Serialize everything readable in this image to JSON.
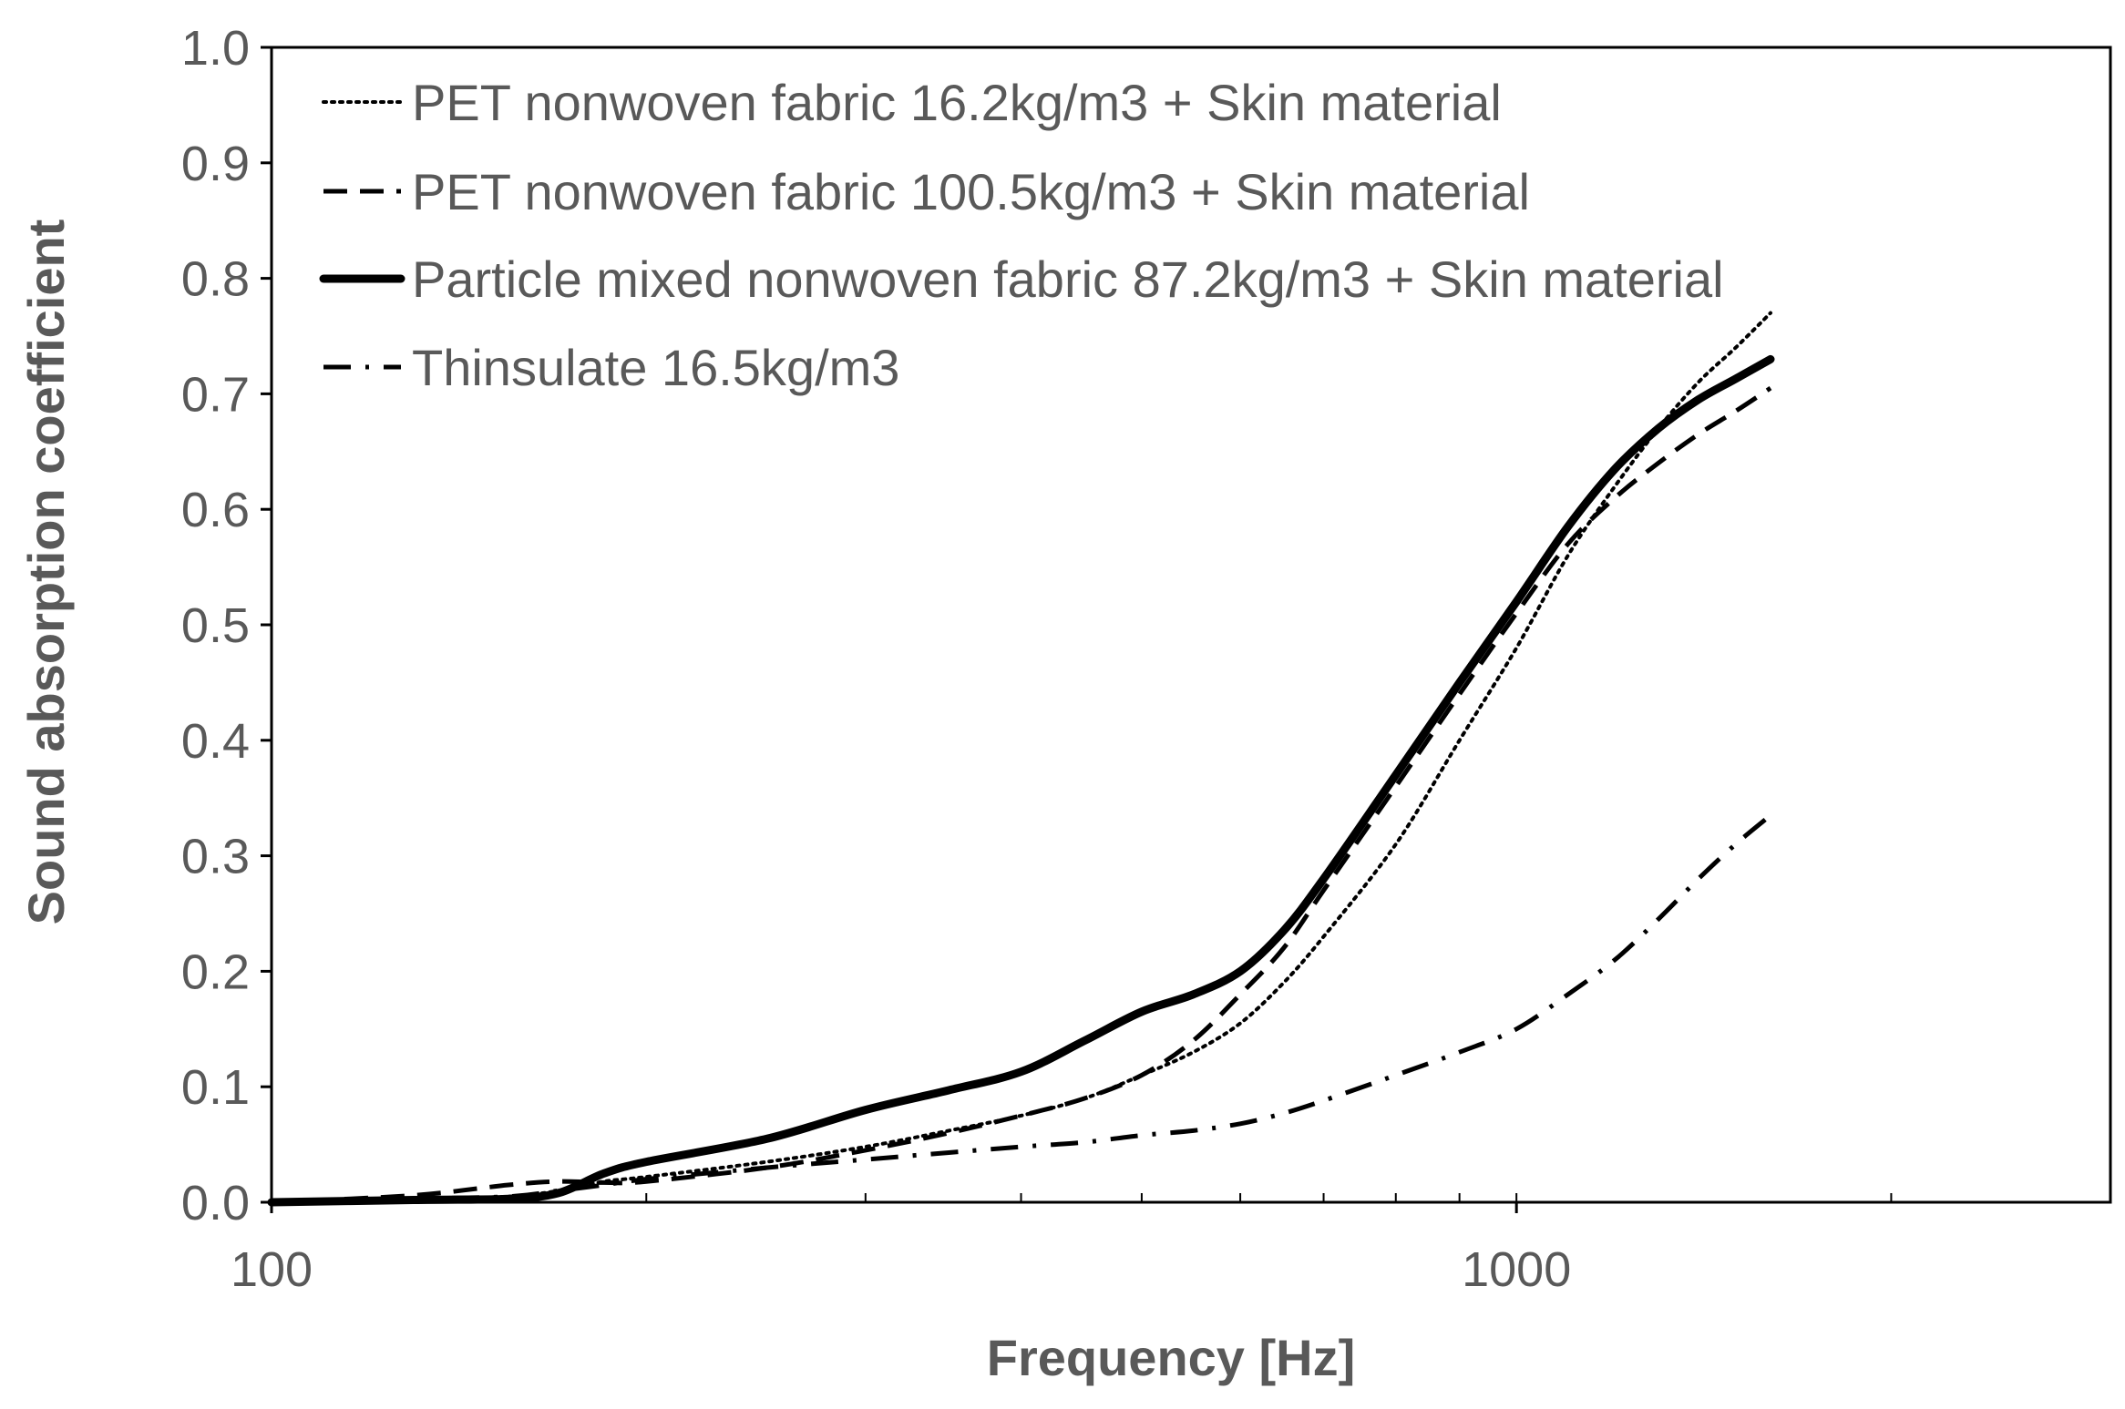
{
  "chart_data": {
    "type": "line",
    "title": "",
    "xlabel": "Frequency [Hz]",
    "ylabel": "Sound absorption coefficient",
    "xscale": "log",
    "xlim": [
      100,
      3000
    ],
    "ylim": [
      0,
      1.0
    ],
    "x_ticks": [
      "100",
      "1000"
    ],
    "y_ticks": [
      "0.0",
      "0.1",
      "0.2",
      "0.3",
      "0.4",
      "0.5",
      "0.6",
      "0.7",
      "0.8",
      "0.9",
      "1.0"
    ],
    "grid": false,
    "legend_position": "top-left",
    "series": [
      {
        "name": "PET nonwoven fabric 16.2kg/m3 + Skin material",
        "style": "dotted",
        "color": "#000000",
        "x": [
          100,
          130,
          155,
          170,
          185,
          200,
          250,
          300,
          350,
          400,
          450,
          500,
          550,
          600,
          650,
          700,
          800,
          900,
          1000,
          1100,
          1200,
          1300,
          1400,
          1500,
          1600
        ],
        "y": [
          0.0,
          0.003,
          0.005,
          0.01,
          0.018,
          0.022,
          0.035,
          0.048,
          0.062,
          0.075,
          0.09,
          0.11,
          0.13,
          0.155,
          0.19,
          0.23,
          0.31,
          0.4,
          0.48,
          0.56,
          0.62,
          0.67,
          0.71,
          0.74,
          0.77
        ]
      },
      {
        "name": "PET nonwoven fabric 100.5kg/m3 + Skin material",
        "style": "dashed",
        "color": "#000000",
        "x": [
          100,
          130,
          155,
          170,
          185,
          200,
          250,
          300,
          350,
          400,
          450,
          500,
          550,
          600,
          650,
          700,
          800,
          900,
          1000,
          1100,
          1200,
          1300,
          1400,
          1500,
          1600
        ],
        "y": [
          0.0,
          0.006,
          0.015,
          0.018,
          0.017,
          0.018,
          0.03,
          0.045,
          0.06,
          0.075,
          0.09,
          0.11,
          0.14,
          0.18,
          0.22,
          0.27,
          0.36,
          0.44,
          0.51,
          0.57,
          0.61,
          0.64,
          0.665,
          0.685,
          0.705
        ]
      },
      {
        "name": "Particle mixed nonwoven fabric 87.2kg/m3 + Skin material",
        "style": "solid",
        "color": "#000000",
        "x": [
          100,
          130,
          155,
          170,
          185,
          200,
          250,
          300,
          350,
          400,
          450,
          500,
          550,
          600,
          650,
          700,
          800,
          900,
          1000,
          1100,
          1200,
          1300,
          1400,
          1500,
          1600
        ],
        "y": [
          0.0,
          0.002,
          0.003,
          0.008,
          0.025,
          0.035,
          0.055,
          0.08,
          0.097,
          0.113,
          0.14,
          0.165,
          0.18,
          0.2,
          0.235,
          0.28,
          0.37,
          0.45,
          0.52,
          0.585,
          0.635,
          0.67,
          0.695,
          0.713,
          0.73
        ]
      },
      {
        "name": "Thinsulate 16.5kg/m3",
        "style": "dash-dot",
        "color": "#000000",
        "x": [
          100,
          130,
          155,
          170,
          185,
          200,
          250,
          300,
          350,
          400,
          450,
          500,
          550,
          600,
          650,
          700,
          800,
          900,
          1000,
          1100,
          1200,
          1300,
          1400,
          1500,
          1600
        ],
        "y": [
          0.0,
          0.003,
          0.005,
          0.01,
          0.015,
          0.02,
          0.03,
          0.037,
          0.043,
          0.048,
          0.052,
          0.058,
          0.062,
          0.068,
          0.077,
          0.088,
          0.11,
          0.13,
          0.15,
          0.18,
          0.21,
          0.245,
          0.28,
          0.31,
          0.335
        ]
      }
    ]
  }
}
